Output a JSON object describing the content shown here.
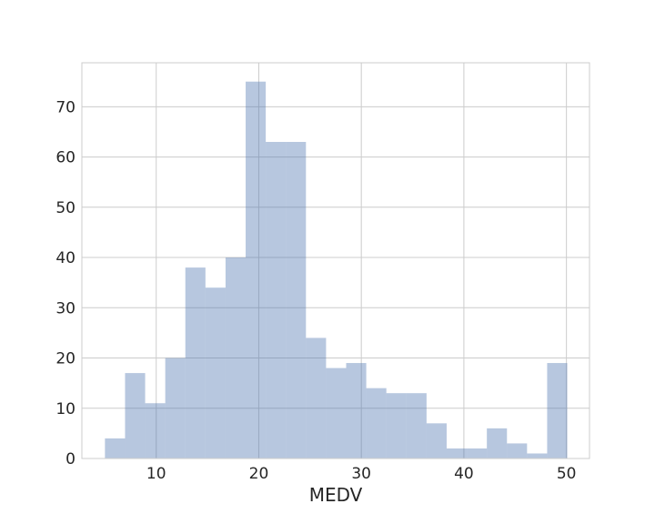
{
  "chart_data": {
    "type": "bar",
    "subtype": "histogram",
    "xlabel": "MEDV",
    "ylabel": "",
    "title": "",
    "xlim": [
      2.75,
      52.25
    ],
    "ylim": [
      0,
      78.75
    ],
    "xticks": [
      10,
      20,
      30,
      40,
      50
    ],
    "yticks": [
      0,
      10,
      20,
      30,
      40,
      50,
      60,
      70
    ],
    "grid": true,
    "bin_edges": [
      5.0,
      6.96,
      8.92,
      10.88,
      12.84,
      14.8,
      16.76,
      18.72,
      20.68,
      22.64,
      24.6,
      26.56,
      28.52,
      30.48,
      32.44,
      34.4,
      36.36,
      38.32,
      40.28,
      42.24,
      44.2,
      46.16,
      48.12,
      50.08
    ],
    "counts": [
      4,
      17,
      11,
      20,
      38,
      34,
      40,
      75,
      63,
      63,
      24,
      18,
      19,
      14,
      13,
      13,
      7,
      2,
      2,
      6,
      3,
      1,
      19
    ],
    "colors": {
      "bar": "#4C72B0",
      "bar_opacity": 0.4,
      "grid": "#cccccc",
      "spine": "#cccccc",
      "text": "#262626"
    }
  }
}
